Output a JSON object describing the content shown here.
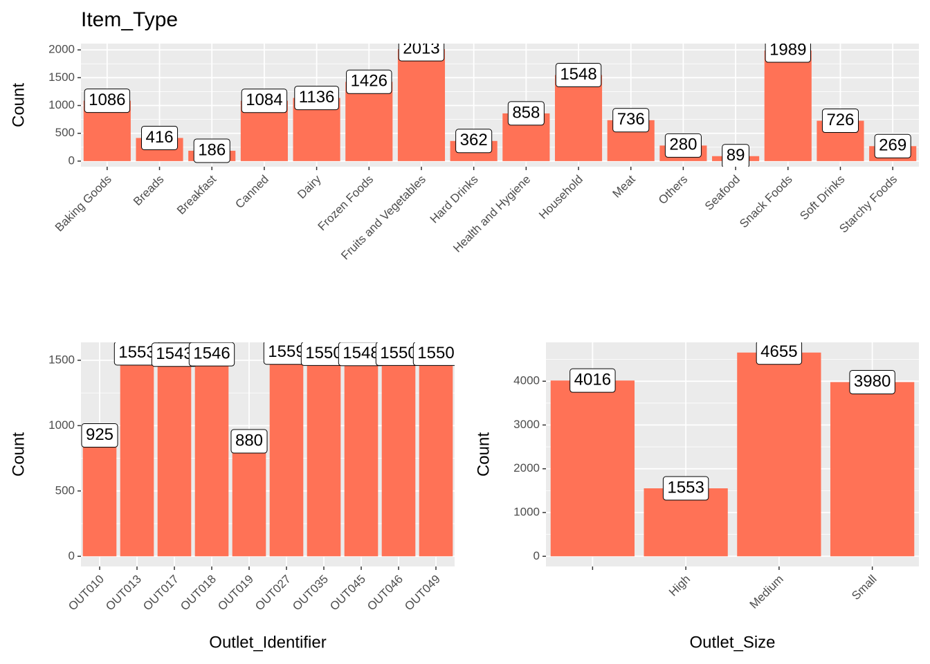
{
  "chart_data": [
    {
      "type": "bar",
      "title": "Item_Type",
      "y_label": "Count",
      "categories": [
        "Baking Goods",
        "Breads",
        "Breakfast",
        "Canned",
        "Dairy",
        "Frozen Foods",
        "Fruits and Vegetables",
        "Hard Drinks",
        "Health and Hygiene",
        "Household",
        "Meat",
        "Others",
        "Seafood",
        "Snack Foods",
        "Soft Drinks",
        "Starchy Foods"
      ],
      "values": [
        1086,
        416,
        186,
        1084,
        1136,
        1426,
        2013,
        362,
        858,
        1548,
        736,
        280,
        89,
        1989,
        726,
        269
      ],
      "color": "#ff7256",
      "ylim": [
        -100.65,
        2113.65
      ],
      "yticks": [
        0,
        500,
        1000,
        1500,
        2000
      ],
      "grid": true
    },
    {
      "type": "bar",
      "y_label": "Count",
      "x_label": "Outlet_Identifier",
      "categories": [
        "OUT010",
        "OUT013",
        "OUT017",
        "OUT018",
        "OUT019",
        "OUT027",
        "OUT035",
        "OUT045",
        "OUT046",
        "OUT049"
      ],
      "values": [
        925,
        1553,
        1543,
        1546,
        880,
        1559,
        1550,
        1548,
        1550,
        1550
      ],
      "color": "#ff7256",
      "ylim": [
        -77.95,
        1636.95
      ],
      "yticks": [
        0,
        500,
        1000,
        1500
      ],
      "grid": true
    },
    {
      "type": "bar",
      "y_label": "Count",
      "x_label": "Outlet_Size",
      "categories": [
        null,
        "High",
        "Medium",
        "Small"
      ],
      "values": [
        4016,
        1553,
        4655,
        3980
      ],
      "color": "#ff7256",
      "ylim": [
        -232.75,
        4887.75
      ],
      "yticks": [
        0,
        1000,
        2000,
        3000,
        4000
      ],
      "grid": true
    }
  ]
}
